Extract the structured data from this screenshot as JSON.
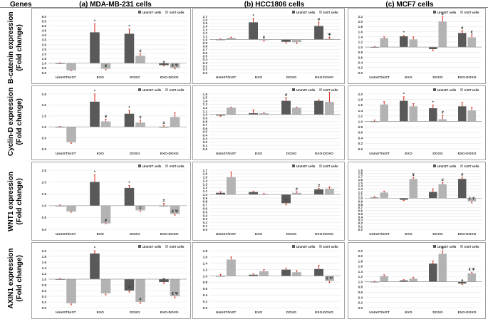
{
  "header": {
    "genes_label": "Genes",
    "columns": [
      "(a) MDA-MB-231 cells",
      "(b) HCC1806 cells",
      "(c) MCF7 cells"
    ]
  },
  "row_labels": [
    [
      "B-catenin expression",
      "(Fold change)"
    ],
    [
      "Cyclin-D expression",
      "(Fold change)"
    ],
    [
      "WNT1 expression",
      "(Fold change)"
    ],
    [
      "AXIN1 expression",
      "(Fold change)"
    ]
  ],
  "colors": {
    "uninst": "#595959",
    "inst": "#b3b3b3",
    "error": "#d42a1e",
    "grid": "#e6e6e6",
    "border": "#8a8a8a"
  },
  "chart_data": [
    {
      "type": "bar",
      "gene": "B-catenin",
      "cell_line": "MDA-MB-231",
      "categories": [
        "UnInST/InST",
        "EXO",
        "DOXO",
        "EXO-DOXO"
      ],
      "series": [
        {
          "name": "UnInST cells",
          "values": [
            1.0,
            4.3,
            4.15,
            0.8
          ]
        },
        {
          "name": "InST cells",
          "values": [
            0.25,
            0.4,
            1.8,
            0.5
          ]
        }
      ],
      "errors": [
        [
          0.05,
          0.9,
          0.5,
          0.1
        ],
        [
          0.05,
          0.1,
          0.2,
          0.1
        ]
      ],
      "annotations": [
        [
          "",
          "*",
          "*",
          "#"
        ],
        [
          "",
          "¥",
          "#",
          "€ Ψ"
        ]
      ],
      "ylim": [
        0,
        6
      ],
      "yticks": [
        0,
        0.5,
        1,
        1.5,
        2,
        2.5,
        3,
        3.5,
        4,
        4.5,
        5,
        5.5,
        6
      ]
    },
    {
      "type": "bar",
      "gene": "B-catenin",
      "cell_line": "HCC1806",
      "categories": [
        "UnInST/InST",
        "EXO",
        "DOXO",
        "EXO-DOXO"
      ],
      "series": [
        {
          "name": "UnInST cells",
          "values": [
            1.0,
            1.52,
            0.93,
            1.41
          ]
        },
        {
          "name": "InST cells",
          "values": [
            1.05,
            0.98,
            0.92,
            1.02
          ]
        }
      ],
      "errors": [
        [
          0.02,
          0.12,
          0.04,
          0.12
        ],
        [
          0.02,
          0.03,
          0.04,
          0.05
        ]
      ],
      "annotations": [
        [
          "",
          "*",
          "",
          "#"
        ],
        [
          "",
          "¥",
          "",
          "Ψ"
        ]
      ],
      "ylim": [
        0,
        1.7
      ],
      "yticks": [
        0,
        0.1,
        0.2,
        0.3,
        0.4,
        0.5,
        0.6,
        0.7,
        0.8,
        0.9,
        1,
        1.1,
        1.2,
        1.3,
        1.4,
        1.5,
        1.6,
        1.7
      ]
    },
    {
      "type": "bar",
      "gene": "B-catenin",
      "cell_line": "MCF7",
      "categories": [
        "UnInST/InST",
        "EXO",
        "DOXO",
        "EXO-DOXO"
      ],
      "series": [
        {
          "name": "UnInST cells",
          "values": [
            1.0,
            1.42,
            0.92,
            1.55
          ]
        },
        {
          "name": "InST cells",
          "values": [
            1.35,
            1.3,
            2.0,
            1.38
          ]
        }
      ],
      "errors": [
        [
          0.02,
          0.04,
          0.06,
          0.1
        ],
        [
          0.05,
          0.1,
          0.18,
          0.1
        ]
      ],
      "annotations": [
        [
          "",
          "*",
          "",
          "#"
        ],
        [
          "",
          "",
          "#",
          "€"
        ]
      ],
      "ylim": [
        0,
        2.2
      ],
      "yticks": [
        0,
        0.2,
        0.4,
        0.6,
        0.8,
        1,
        1.2,
        1.4,
        1.6,
        1.8,
        2,
        2.2
      ]
    },
    {
      "type": "bar",
      "gene": "Cyclin-D",
      "cell_line": "MDA-MB-231",
      "categories": [
        "UnInST/InST",
        "EXO",
        "DOXO",
        "EXO-DOXO"
      ],
      "series": [
        {
          "name": "UnInST cells",
          "values": [
            1.0,
            2.15,
            1.6,
            1.0
          ]
        },
        {
          "name": "InST cells",
          "values": [
            0.3,
            1.25,
            1.2,
            1.45
          ]
        }
      ],
      "errors": [
        [
          0.02,
          0.35,
          0.15,
          0.05
        ],
        [
          0.05,
          0.1,
          0.12,
          0.2
        ]
      ],
      "annotations": [
        [
          "",
          "*",
          "*",
          "#"
        ],
        [
          "",
          "¥",
          "#",
          ""
        ]
      ],
      "ylim": [
        0,
        2.5
      ],
      "yticks": [
        0,
        0.5,
        1,
        1.5,
        2,
        2.5
      ]
    },
    {
      "type": "bar",
      "gene": "Cyclin-D",
      "cell_line": "HCC1806",
      "categories": [
        "UnInST/InST",
        "EXO",
        "DOXO",
        "EXO-DOXO"
      ],
      "series": [
        {
          "name": "UnInST cells",
          "values": [
            0.97,
            1.04,
            1.4,
            1.4
          ]
        },
        {
          "name": "InST cells",
          "values": [
            1.2,
            1.04,
            1.2,
            1.37
          ]
        }
      ],
      "errors": [
        [
          0.02,
          0.1,
          0.1,
          0.03
        ],
        [
          0.02,
          0.02,
          0.02,
          0.28
        ]
      ],
      "annotations": [
        [
          "",
          "",
          "#",
          ""
        ],
        [
          "",
          "",
          "",
          ""
        ]
      ],
      "ylim": [
        0,
        1.6
      ],
      "yticks": [
        0,
        0.1,
        0.2,
        0.3,
        0.4,
        0.5,
        0.6,
        0.7,
        0.8,
        0.9,
        1,
        1.1,
        1.2,
        1.3,
        1.4,
        1.5,
        1.6
      ]
    },
    {
      "type": "bar",
      "gene": "Cyclin-D",
      "cell_line": "MCF7",
      "categories": [
        "UnInST/InST",
        "EXO",
        "DOXO",
        "EXO-DOXO"
      ],
      "series": [
        {
          "name": "UnInST cells",
          "values": [
            1.0,
            1.75,
            1.48,
            1.55
          ]
        },
        {
          "name": "InST cells",
          "values": [
            1.62,
            1.55,
            1.08,
            1.4
          ]
        }
      ],
      "errors": [
        [
          0.05,
          0.15,
          0.12,
          0.15
        ],
        [
          0.1,
          0.1,
          0.15,
          0.12
        ]
      ],
      "annotations": [
        [
          "",
          "*",
          "*",
          ""
        ],
        [
          "",
          "",
          "#",
          ""
        ]
      ],
      "ylim": [
        0,
        2
      ],
      "yticks": [
        0,
        0.2,
        0.4,
        0.6,
        0.8,
        1,
        1.2,
        1.4,
        1.6,
        1.8,
        2
      ]
    },
    {
      "type": "bar",
      "gene": "WNT1",
      "cell_line": "MDA-MB-231",
      "categories": [
        "UnInST/InST",
        "EXO",
        "DOXO",
        "EXO-DOXO"
      ],
      "series": [
        {
          "name": "UnInST cells",
          "values": [
            1.0,
            2.0,
            1.75,
            1.0
          ]
        },
        {
          "name": "InST cells",
          "values": [
            0.75,
            0.25,
            0.8,
            0.65
          ]
        }
      ],
      "errors": [
        [
          0.03,
          0.3,
          0.1,
          0.1
        ],
        [
          0.03,
          0.02,
          0.05,
          0.05
        ]
      ],
      "annotations": [
        [
          "",
          "*",
          "*",
          "#"
        ],
        [
          "",
          "¥",
          "#",
          "€ Ψ"
        ]
      ],
      "ylim": [
        0,
        2.5
      ],
      "yticks": [
        0,
        0.5,
        1,
        1.5,
        2,
        2.5
      ]
    },
    {
      "type": "bar",
      "gene": "WNT1",
      "cell_line": "HCC1806",
      "categories": [
        "UnInST/InST",
        "EXO",
        "DOXO",
        "EXO-DOXO"
      ],
      "series": [
        {
          "name": "UnInST cells",
          "values": [
            1.05,
            1.07,
            0.75,
            1.15
          ]
        },
        {
          "name": "InST cells",
          "values": [
            1.5,
            1.0,
            1.05,
            1.17
          ]
        }
      ],
      "errors": [
        [
          0.03,
          0.03,
          0.05,
          0.03
        ],
        [
          0.15,
          0.03,
          0.03,
          0.05
        ]
      ],
      "annotations": [
        [
          "",
          "",
          "*",
          "#"
        ],
        [
          "",
          "",
          "#",
          ""
        ]
      ],
      "ylim": [
        0,
        1.7
      ],
      "yticks": [
        0,
        0.1,
        0.2,
        0.3,
        0.4,
        0.5,
        0.6,
        0.7,
        0.8,
        0.9,
        1,
        1.1,
        1.2,
        1.3,
        1.4,
        1.5,
        1.6,
        1.7
      ]
    },
    {
      "type": "bar",
      "gene": "WNT1",
      "cell_line": "MCF7",
      "categories": [
        "UnInST/InST",
        "EXO",
        "DOXO",
        "EXO-DOXO"
      ],
      "series": [
        {
          "name": "UnInST cells",
          "values": [
            1.02,
            0.95,
            1.2,
            1.62
          ]
        },
        {
          "name": "InST cells",
          "values": [
            1.18,
            1.62,
            1.45,
            0.9
          ]
        }
      ],
      "errors": [
        [
          0.03,
          0.03,
          0.1,
          0.05
        ],
        [
          0.05,
          0.05,
          0.05,
          0.05
        ]
      ],
      "annotations": [
        [
          "",
          "",
          "",
          "#"
        ],
        [
          "",
          "¥",
          "#",
          "€ Ψ"
        ]
      ],
      "ylim": [
        0,
        1.9
      ],
      "yticks": [
        0,
        0.1,
        0.2,
        0.3,
        0.4,
        0.5,
        0.6,
        0.7,
        0.8,
        0.9,
        1,
        1.1,
        1.2,
        1.3,
        1.4,
        1.5,
        1.6,
        1.7,
        1.8,
        1.9
      ]
    },
    {
      "type": "bar",
      "gene": "AXIN1",
      "cell_line": "MDA-MB-231",
      "categories": [
        "UnInST/InST",
        "EXO",
        "DOXO",
        "EXO-DOXO"
      ],
      "series": [
        {
          "name": "UnInST cells",
          "values": [
            1.0,
            1.9,
            0.6,
            0.9
          ]
        },
        {
          "name": "InST cells",
          "values": [
            0.15,
            0.5,
            0.2,
            0.4
          ]
        }
      ],
      "errors": [
        [
          0.02,
          0.1,
          0.05,
          0.05
        ],
        [
          0.05,
          0.05,
          0.05,
          0.05
        ]
      ],
      "annotations": [
        [
          "",
          "*",
          "*",
          "#"
        ],
        [
          "",
          "",
          "#",
          "€ Ψ"
        ]
      ],
      "ylim": [
        0,
        2
      ],
      "yticks": [
        0,
        0.2,
        0.4,
        0.6,
        0.8,
        1,
        1.2,
        1.4,
        1.6,
        1.8,
        2
      ]
    },
    {
      "type": "bar",
      "gene": "AXIN1",
      "cell_line": "HCC1806",
      "categories": [
        "UnInST/InST",
        "EXO",
        "DOXO",
        "EXO-DOXO"
      ],
      "series": [
        {
          "name": "UnInST cells",
          "values": [
            1.0,
            1.04,
            1.2,
            1.22
          ]
        },
        {
          "name": "InST cells",
          "values": [
            1.52,
            1.15,
            1.12,
            0.84
          ]
        }
      ],
      "errors": [
        [
          0.05,
          0.03,
          0.05,
          0.12
        ],
        [
          0.08,
          0.05,
          0.05,
          0.05
        ]
      ],
      "annotations": [
        [
          "",
          "",
          "",
          ""
        ],
        [
          "",
          "",
          "",
          "€ Ψ"
        ]
      ],
      "ylim": [
        0,
        1.8
      ],
      "yticks": [
        0,
        0.2,
        0.4,
        0.6,
        0.8,
        1,
        1.2,
        1.4,
        1.6,
        1.8
      ]
    },
    {
      "type": "bar",
      "gene": "AXIN1",
      "cell_line": "MCF7",
      "categories": [
        "UnInST/InST",
        "EXO",
        "DOXO",
        "EXO-DOXO"
      ],
      "series": [
        {
          "name": "UnInST cells",
          "values": [
            1.0,
            1.05,
            1.7,
            0.93
          ]
        },
        {
          "name": "InST cells",
          "values": [
            1.22,
            1.12,
            2.08,
            1.32
          ]
        }
      ],
      "errors": [
        [
          0.02,
          0.03,
          0.1,
          0.03
        ],
        [
          0.05,
          0.05,
          0.1,
          0.05
        ]
      ],
      "annotations": [
        [
          "",
          "",
          "",
          "#"
        ],
        [
          "",
          "",
          "#",
          "€ Ψ"
        ]
      ],
      "ylim": [
        0,
        2.2
      ],
      "yticks": [
        0,
        0.2,
        0.4,
        0.6,
        0.8,
        1,
        1.2,
        1.4,
        1.6,
        1.8,
        2,
        2.2
      ]
    }
  ]
}
